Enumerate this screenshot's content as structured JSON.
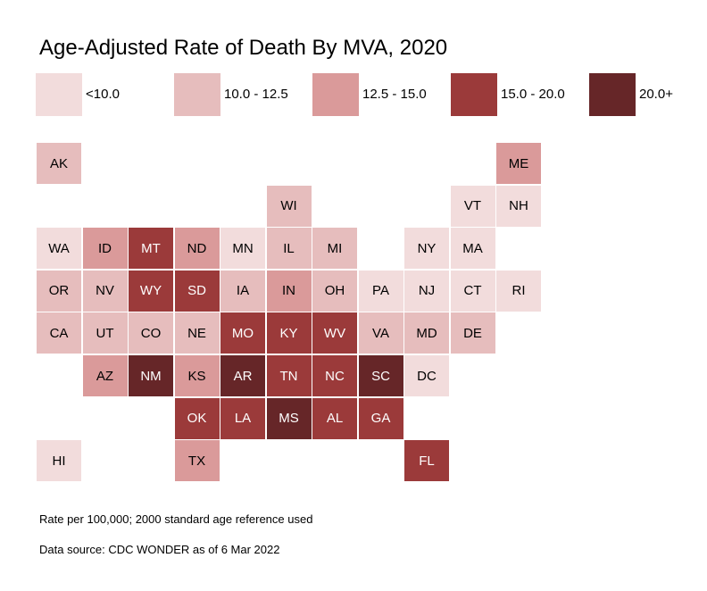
{
  "chart_data": {
    "type": "heatmap",
    "title": "Age-Adjusted Rate of Death By MVA, 2020",
    "legend": {
      "placement": "top",
      "bins": [
        {
          "label": "<10.0",
          "color": "#f2dcdc"
        },
        {
          "label": "10.0 - 12.5",
          "color": "#e6bdbd"
        },
        {
          "label": "12.5 - 15.0",
          "color": "#da9a9a"
        },
        {
          "label": "15.0 - 20.0",
          "color": "#9b3a3a"
        },
        {
          "label": "20.0+",
          "color": "#662628"
        }
      ]
    },
    "states": [
      {
        "abbr": "AK",
        "row": 0,
        "col": 0,
        "bin": 1
      },
      {
        "abbr": "ME",
        "row": 0,
        "col": 10,
        "bin": 2
      },
      {
        "abbr": "WI",
        "row": 1,
        "col": 5,
        "bin": 1
      },
      {
        "abbr": "VT",
        "row": 1,
        "col": 9,
        "bin": 0
      },
      {
        "abbr": "NH",
        "row": 1,
        "col": 10,
        "bin": 0
      },
      {
        "abbr": "WA",
        "row": 2,
        "col": 0,
        "bin": 0
      },
      {
        "abbr": "ID",
        "row": 2,
        "col": 1,
        "bin": 2
      },
      {
        "abbr": "MT",
        "row": 2,
        "col": 2,
        "bin": 3
      },
      {
        "abbr": "ND",
        "row": 2,
        "col": 3,
        "bin": 2
      },
      {
        "abbr": "MN",
        "row": 2,
        "col": 4,
        "bin": 0
      },
      {
        "abbr": "IL",
        "row": 2,
        "col": 5,
        "bin": 1
      },
      {
        "abbr": "MI",
        "row": 2,
        "col": 6,
        "bin": 1
      },
      {
        "abbr": "NY",
        "row": 2,
        "col": 8,
        "bin": 0
      },
      {
        "abbr": "MA",
        "row": 2,
        "col": 9,
        "bin": 0
      },
      {
        "abbr": "OR",
        "row": 3,
        "col": 0,
        "bin": 1
      },
      {
        "abbr": "NV",
        "row": 3,
        "col": 1,
        "bin": 1
      },
      {
        "abbr": "WY",
        "row": 3,
        "col": 2,
        "bin": 3
      },
      {
        "abbr": "SD",
        "row": 3,
        "col": 3,
        "bin": 3
      },
      {
        "abbr": "IA",
        "row": 3,
        "col": 4,
        "bin": 1
      },
      {
        "abbr": "IN",
        "row": 3,
        "col": 5,
        "bin": 2
      },
      {
        "abbr": "OH",
        "row": 3,
        "col": 6,
        "bin": 1
      },
      {
        "abbr": "PA",
        "row": 3,
        "col": 7,
        "bin": 0
      },
      {
        "abbr": "NJ",
        "row": 3,
        "col": 8,
        "bin": 0
      },
      {
        "abbr": "CT",
        "row": 3,
        "col": 9,
        "bin": 0
      },
      {
        "abbr": "RI",
        "row": 3,
        "col": 10,
        "bin": 0
      },
      {
        "abbr": "CA",
        "row": 4,
        "col": 0,
        "bin": 1
      },
      {
        "abbr": "UT",
        "row": 4,
        "col": 1,
        "bin": 1
      },
      {
        "abbr": "CO",
        "row": 4,
        "col": 2,
        "bin": 1
      },
      {
        "abbr": "NE",
        "row": 4,
        "col": 3,
        "bin": 1
      },
      {
        "abbr": "MO",
        "row": 4,
        "col": 4,
        "bin": 3
      },
      {
        "abbr": "KY",
        "row": 4,
        "col": 5,
        "bin": 3
      },
      {
        "abbr": "WV",
        "row": 4,
        "col": 6,
        "bin": 3
      },
      {
        "abbr": "VA",
        "row": 4,
        "col": 7,
        "bin": 1
      },
      {
        "abbr": "MD",
        "row": 4,
        "col": 8,
        "bin": 1
      },
      {
        "abbr": "DE",
        "row": 4,
        "col": 9,
        "bin": 1
      },
      {
        "abbr": "AZ",
        "row": 5,
        "col": 1,
        "bin": 2
      },
      {
        "abbr": "NM",
        "row": 5,
        "col": 2,
        "bin": 4
      },
      {
        "abbr": "KS",
        "row": 5,
        "col": 3,
        "bin": 2
      },
      {
        "abbr": "AR",
        "row": 5,
        "col": 4,
        "bin": 4
      },
      {
        "abbr": "TN",
        "row": 5,
        "col": 5,
        "bin": 3
      },
      {
        "abbr": "NC",
        "row": 5,
        "col": 6,
        "bin": 3
      },
      {
        "abbr": "SC",
        "row": 5,
        "col": 7,
        "bin": 4
      },
      {
        "abbr": "DC",
        "row": 5,
        "col": 8,
        "bin": 0
      },
      {
        "abbr": "OK",
        "row": 6,
        "col": 3,
        "bin": 3
      },
      {
        "abbr": "LA",
        "row": 6,
        "col": 4,
        "bin": 3
      },
      {
        "abbr": "MS",
        "row": 6,
        "col": 5,
        "bin": 4
      },
      {
        "abbr": "AL",
        "row": 6,
        "col": 6,
        "bin": 3
      },
      {
        "abbr": "GA",
        "row": 6,
        "col": 7,
        "bin": 3
      },
      {
        "abbr": "HI",
        "row": 7,
        "col": 0,
        "bin": 0
      },
      {
        "abbr": "TX",
        "row": 7,
        "col": 3,
        "bin": 2
      },
      {
        "abbr": "FL",
        "row": 7,
        "col": 8,
        "bin": 3
      }
    ],
    "notes": [
      "Rate per 100,000; 2000 standard age reference used",
      "Data source: CDC WONDER as of 6 Mar 2022"
    ]
  }
}
